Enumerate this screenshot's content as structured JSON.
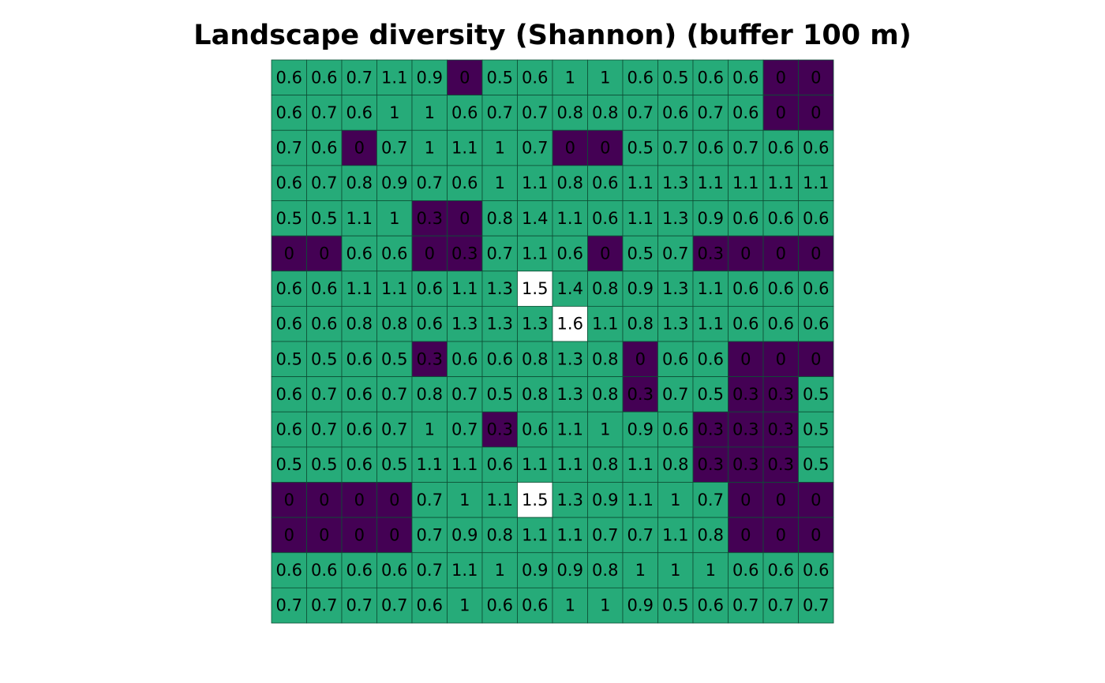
{
  "chart_data": {
    "type": "heatmap",
    "title": "Landscape diversity (Shannon) (buffer 100 m)",
    "xlabel": "",
    "ylabel": "",
    "grid": true,
    "legend": "none",
    "colors": {
      "low": "#440154",
      "mid": "#26AB79",
      "high": "#FFFFFF",
      "border": "#0D4F35"
    },
    "rows": [
      [
        0.6,
        0.6,
        0.7,
        1.1,
        0.9,
        0,
        0.5,
        0.6,
        1,
        1,
        0.6,
        0.5,
        0.6,
        0.6,
        0,
        0
      ],
      [
        0.6,
        0.7,
        0.6,
        1,
        1,
        0.6,
        0.7,
        0.7,
        0.8,
        0.8,
        0.7,
        0.6,
        0.7,
        0.6,
        0,
        0
      ],
      [
        0.7,
        0.6,
        0,
        0.7,
        1,
        1.1,
        1,
        0.7,
        0,
        0,
        0.5,
        0.7,
        0.6,
        0.7,
        0.6,
        0.6
      ],
      [
        0.6,
        0.7,
        0.8,
        0.9,
        0.7,
        0.6,
        1,
        1.1,
        0.8,
        0.6,
        1.1,
        1.3,
        1.1,
        1.1,
        1.1,
        1.1
      ],
      [
        0.5,
        0.5,
        1.1,
        1,
        0.3,
        0,
        0.8,
        1.4,
        1.1,
        0.6,
        1.1,
        1.3,
        0.9,
        0.6,
        0.6,
        0.6
      ],
      [
        0,
        0,
        0.6,
        0.6,
        0,
        0.3,
        0.7,
        1.1,
        0.6,
        0,
        0.5,
        0.7,
        0.3,
        0,
        0,
        0
      ],
      [
        0.6,
        0.6,
        1.1,
        1.1,
        0.6,
        1.1,
        1.3,
        1.5,
        1.4,
        0.8,
        0.9,
        1.3,
        1.1,
        0.6,
        0.6,
        0.6
      ],
      [
        0.6,
        0.6,
        0.8,
        0.8,
        0.6,
        1.3,
        1.3,
        1.3,
        1.6,
        1.1,
        0.8,
        1.3,
        1.1,
        0.6,
        0.6,
        0.6
      ],
      [
        0.5,
        0.5,
        0.6,
        0.5,
        0.3,
        0.6,
        0.6,
        0.8,
        1.3,
        0.8,
        0,
        0.6,
        0.6,
        0,
        0,
        0
      ],
      [
        0.6,
        0.7,
        0.6,
        0.7,
        0.8,
        0.7,
        0.5,
        0.8,
        1.3,
        0.8,
        0.3,
        0.7,
        0.5,
        0.3,
        0.3,
        0.5
      ],
      [
        0.6,
        0.7,
        0.6,
        0.7,
        1,
        0.7,
        0.3,
        0.6,
        1.1,
        1,
        0.9,
        0.6,
        0.3,
        0.3,
        0.3,
        0.5
      ],
      [
        0.5,
        0.5,
        0.6,
        0.5,
        1.1,
        1.1,
        0.6,
        1.1,
        1.1,
        0.8,
        1.1,
        0.8,
        0.3,
        0.3,
        0.3,
        0.5
      ],
      [
        0,
        0,
        0,
        0,
        0.7,
        1,
        1.1,
        1.5,
        1.3,
        0.9,
        1.1,
        1,
        0.7,
        0,
        0,
        0
      ],
      [
        0,
        0,
        0,
        0,
        0.7,
        0.9,
        0.8,
        1.1,
        1.1,
        0.7,
        0.7,
        1.1,
        0.8,
        0,
        0,
        0
      ],
      [
        0.6,
        0.6,
        0.6,
        0.6,
        0.7,
        1.1,
        1,
        0.9,
        0.9,
        0.8,
        1,
        1,
        1,
        0.6,
        0.6,
        0.6
      ],
      [
        0.7,
        0.7,
        0.7,
        0.7,
        0.6,
        1,
        0.6,
        0.6,
        1,
        1,
        0.9,
        0.5,
        0.6,
        0.7,
        0.7,
        0.7
      ]
    ]
  }
}
